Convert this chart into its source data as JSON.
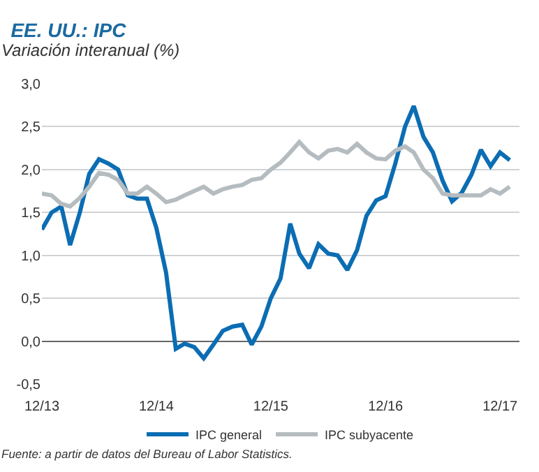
{
  "chart_data": {
    "type": "line",
    "title": "EE. UU.: IPC",
    "subtitle": "Variación interanual (%)",
    "x": [
      "2013-12",
      "2014-01",
      "2014-02",
      "2014-03",
      "2014-04",
      "2014-05",
      "2014-06",
      "2014-07",
      "2014-08",
      "2014-09",
      "2014-10",
      "2014-11",
      "2014-12",
      "2015-01",
      "2015-02",
      "2015-03",
      "2015-04",
      "2015-05",
      "2015-06",
      "2015-07",
      "2015-08",
      "2015-09",
      "2015-10",
      "2015-11",
      "2015-12",
      "2016-01",
      "2016-02",
      "2016-03",
      "2016-04",
      "2016-05",
      "2016-06",
      "2016-07",
      "2016-08",
      "2016-09",
      "2016-10",
      "2016-11",
      "2016-12",
      "2017-01",
      "2017-02",
      "2017-03",
      "2017-04",
      "2017-05",
      "2017-06",
      "2017-07",
      "2017-08",
      "2017-09",
      "2017-10",
      "2017-11",
      "2017-12",
      "2018-01"
    ],
    "series": [
      {
        "name": "IPC general",
        "color": "#0b6db3",
        "values": [
          1.3,
          1.5,
          1.57,
          1.12,
          1.5,
          1.95,
          2.12,
          2.07,
          2.0,
          1.7,
          1.66,
          1.66,
          1.32,
          0.8,
          -0.09,
          -0.03,
          -0.07,
          -0.2,
          -0.04,
          0.12,
          0.17,
          0.19,
          -0.04,
          0.17,
          0.5,
          0.73,
          1.37,
          1.02,
          0.85,
          1.13,
          1.02,
          1.0,
          0.83,
          1.06,
          1.46,
          1.64,
          1.69,
          2.07,
          2.5,
          2.74,
          2.38,
          2.2,
          1.87,
          1.63,
          1.73,
          1.94,
          2.23,
          2.04,
          2.2,
          2.11
        ]
      },
      {
        "name": "IPC subyacente",
        "color": "#b5bcc0",
        "values": [
          1.72,
          1.7,
          1.6,
          1.57,
          1.67,
          1.8,
          1.96,
          1.94,
          1.88,
          1.72,
          1.72,
          1.8,
          1.72,
          1.62,
          1.65,
          1.7,
          1.75,
          1.8,
          1.72,
          1.77,
          1.8,
          1.82,
          1.88,
          1.9,
          2.0,
          2.08,
          2.2,
          2.32,
          2.2,
          2.13,
          2.22,
          2.24,
          2.2,
          2.3,
          2.2,
          2.13,
          2.12,
          2.22,
          2.27,
          2.2,
          2.0,
          1.9,
          1.72,
          1.7,
          1.7,
          1.7,
          1.7,
          1.77,
          1.72,
          1.8
        ]
      }
    ],
    "xlim": [
      "2013-12",
      "2018-02"
    ],
    "xticks": [
      {
        "value": "2013-12",
        "label": "12/13"
      },
      {
        "value": "2014-12",
        "label": "12/14"
      },
      {
        "value": "2015-12",
        "label": "12/15"
      },
      {
        "value": "2016-12",
        "label": "12/16"
      },
      {
        "value": "2017-12",
        "label": "12/17"
      }
    ],
    "ylim": [
      -0.5,
      3.0
    ],
    "yticks": [
      {
        "value": -0.5,
        "label": "-0,5"
      },
      {
        "value": 0,
        "label": "0,0"
      },
      {
        "value": 0.5,
        "label": "0,5"
      },
      {
        "value": 1,
        "label": "1,0"
      },
      {
        "value": 1.5,
        "label": "1,5"
      },
      {
        "value": 2,
        "label": "2,0"
      },
      {
        "value": 2.5,
        "label": "2,5"
      },
      {
        "value": 3,
        "label": "3,0"
      }
    ],
    "grid": "y",
    "legend": "bottom",
    "marker": "none",
    "line_style": "solid",
    "annotations": [
      "Fuente: a partir de datos del Bureau of Labor Statistics."
    ]
  }
}
